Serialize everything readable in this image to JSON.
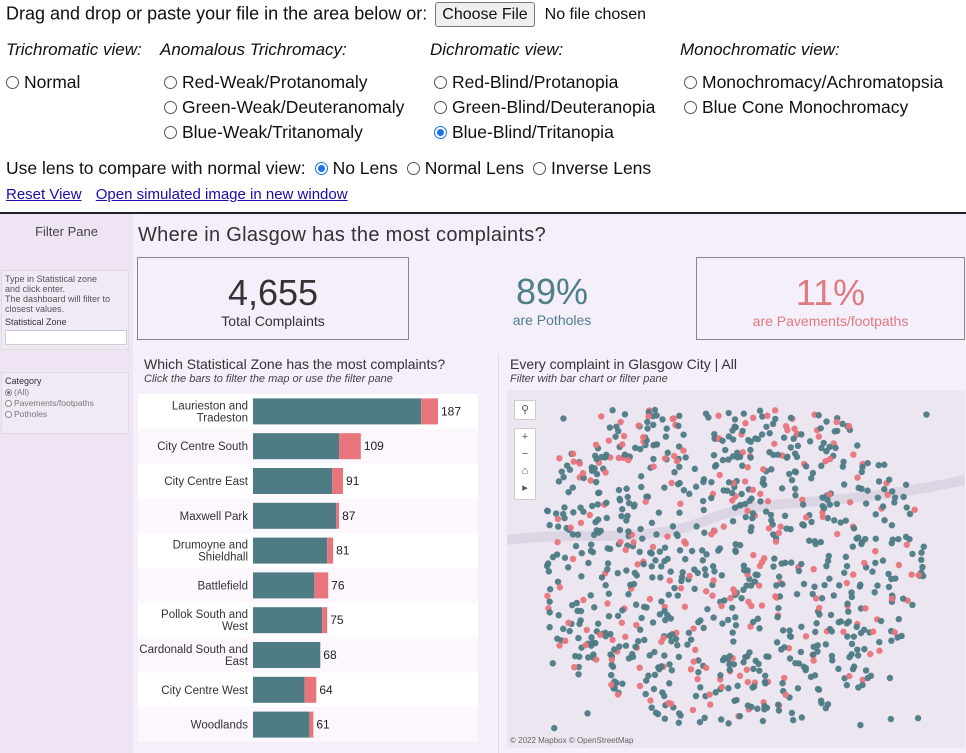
{
  "top": {
    "prompt": "Drag and drop or paste your file in the area below or:",
    "choose_label": "Choose File",
    "no_file": "No file chosen"
  },
  "columns": [
    {
      "heading": "Trichromatic view:",
      "options": [
        {
          "label": "Normal",
          "selected": false
        }
      ]
    },
    {
      "heading": "Anomalous Trichromacy:",
      "options": [
        {
          "label": "Red-Weak/Protanomaly",
          "selected": false
        },
        {
          "label": "Green-Weak/Deuteranomaly",
          "selected": false
        },
        {
          "label": "Blue-Weak/Tritanomaly",
          "selected": false
        }
      ]
    },
    {
      "heading": "Dichromatic view:",
      "options": [
        {
          "label": "Red-Blind/Protanopia",
          "selected": false
        },
        {
          "label": "Green-Blind/Deuteranopia",
          "selected": false
        },
        {
          "label": "Blue-Blind/Tritanopia",
          "selected": true
        }
      ]
    },
    {
      "heading": "Monochromatic view:",
      "options": [
        {
          "label": "Monochromacy/Achromatopsia",
          "selected": false
        },
        {
          "label": "Blue Cone Monochromacy",
          "selected": false
        }
      ]
    }
  ],
  "lens": {
    "prompt": "Use lens to compare with normal view:",
    "options": [
      {
        "label": "No Lens",
        "selected": true
      },
      {
        "label": "Normal Lens",
        "selected": false
      },
      {
        "label": "Inverse Lens",
        "selected": false
      }
    ]
  },
  "links": {
    "reset": "Reset View",
    "open": "Open simulated image in new window"
  },
  "dashboard": {
    "title": "Where in Glasgow has the most complaints?",
    "filter_pane": {
      "title": "Filter Pane",
      "hint_lines": [
        "Type in Statistical zone",
        "and click enter.",
        "The dashboard will filter to",
        "closest values."
      ],
      "zone_label": "Statistical Zone",
      "category_label": "Category",
      "category_options": [
        {
          "label": "(All)",
          "selected": true
        },
        {
          "label": "Pavements/footpaths",
          "selected": false
        },
        {
          "label": "Potholes",
          "selected": false
        }
      ]
    },
    "kpis": [
      {
        "value": "4,655",
        "caption": "Total Complaints",
        "color": "#333333"
      },
      {
        "value": "89%",
        "caption": "are Potholes",
        "color": "#4f7f89"
      },
      {
        "value": "11%",
        "caption": "are Pavements/footpaths",
        "color": "#e07a80"
      }
    ],
    "bar_title": "Which Statistical Zone has the most complaints?",
    "bar_subtitle": "Click the bars to filter the map or use the filter pane",
    "map_title": "Every complaint in Glasgow City | All",
    "map_subtitle": "Filter with bar chart or filter pane",
    "map_credit": "© 2022 Mapbox © OpenStreetMap",
    "colors": {
      "potholes": "#4e7b84",
      "pavements": "#e8747c",
      "map_bg": "#ebe6f0"
    }
  },
  "chart_data": {
    "type": "bar",
    "orientation": "horizontal",
    "stacked": true,
    "categories": [
      "Laurieston and Tradeston",
      "City Centre South",
      "City Centre East",
      "Maxwell Park",
      "Drumoyne and Shieldhall",
      "Battlefield",
      "Pollok South and West",
      "Cardonald South and East",
      "City Centre West",
      "Woodlands"
    ],
    "totals": [
      187,
      109,
      91,
      87,
      81,
      76,
      75,
      68,
      64,
      61
    ],
    "series": [
      {
        "name": "Potholes",
        "values": [
          170,
          87,
          80,
          84,
          75,
          62,
          70,
          68,
          52,
          57
        ]
      },
      {
        "name": "Pavements/footpaths",
        "values": [
          17,
          22,
          11,
          3,
          6,
          14,
          5,
          0,
          12,
          4
        ]
      }
    ]
  },
  "map_points": {
    "seed": 7
  }
}
